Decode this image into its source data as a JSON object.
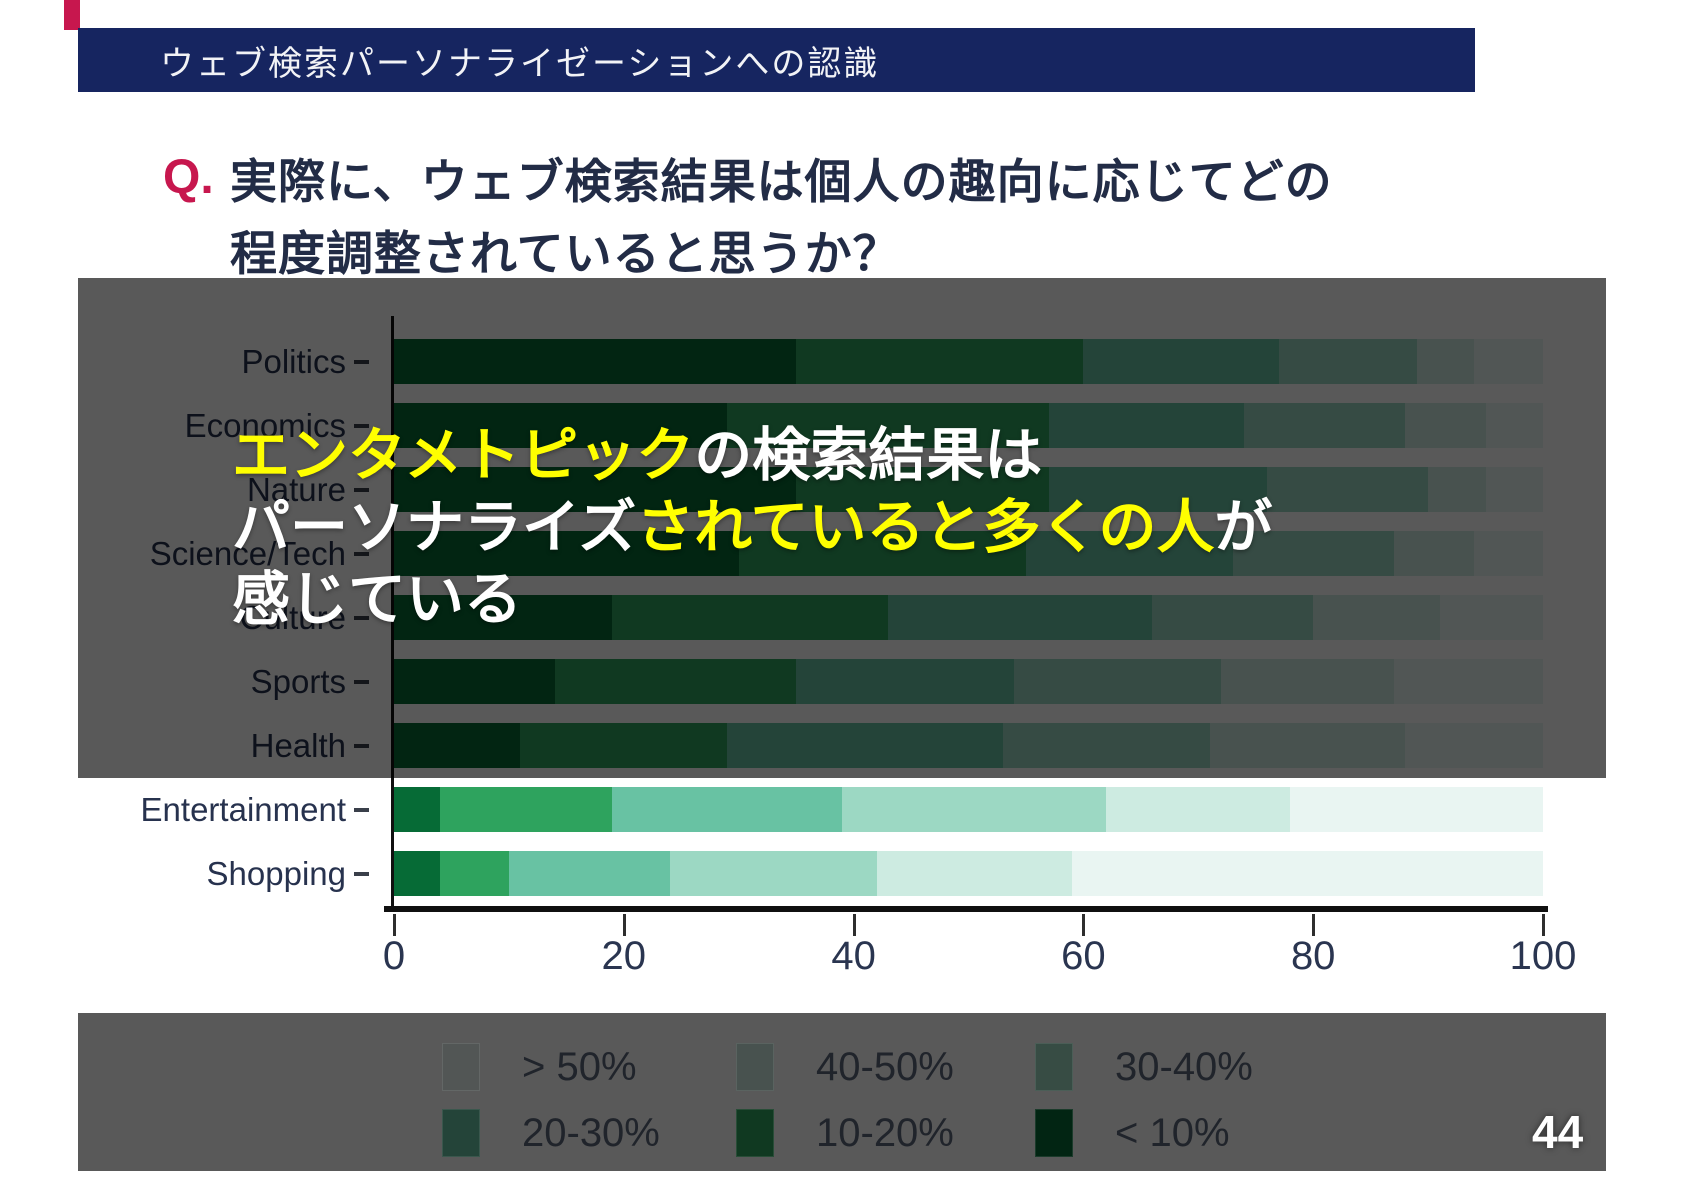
{
  "header": {
    "title": "ウェブ検索パーソナライゼーションへの認識",
    "bg_color": "#162560",
    "accent_color": "#c7174e"
  },
  "question": {
    "prefix": "Q.",
    "prefix_color": "#c7174e",
    "line1": "実際に、ウェブ検索結果は個人の趣向に応じてどの",
    "line2": "程度調整されていると思うか？",
    "text_color": "#222c46"
  },
  "callout": {
    "highlight_color": "#ffff00",
    "base_color": "#ffffff",
    "line1": [
      {
        "text": "エンタメトピック",
        "color": "#ffff00"
      },
      {
        "text": "の検索結果は",
        "color": "#ffffff"
      }
    ],
    "line2": [
      {
        "text": "パーソナライズ",
        "color": "#ffffff"
      },
      {
        "text": "されていると多くの人",
        "color": "#ffff00"
      },
      {
        "text": "が",
        "color": "#ffffff"
      }
    ],
    "line3": [
      {
        "text": "感じている",
        "color": "#ffffff"
      }
    ]
  },
  "chart_data": {
    "type": "bar",
    "stacked": true,
    "orientation": "horizontal",
    "title": "",
    "xlabel": "",
    "ylabel": "",
    "xlim": [
      0,
      100
    ],
    "x_ticks": [
      0,
      20,
      40,
      60,
      80,
      100
    ],
    "grid": false,
    "categories": [
      "Politics",
      "Economics",
      "Nature",
      "Science/Tech",
      "Culture",
      "Sports",
      "Health",
      "Entertainment",
      "Shopping"
    ],
    "series": [
      {
        "name": "< 10%",
        "color": "#066b36",
        "values": [
          35,
          29,
          35,
          30,
          19,
          14,
          11,
          4,
          4
        ]
      },
      {
        "name": "10-20%",
        "color": "#2ea35e",
        "values": [
          25,
          28,
          22,
          25,
          24,
          21,
          18,
          15,
          6
        ]
      },
      {
        "name": "20-30%",
        "color": "#68c2a3",
        "values": [
          17,
          17,
          19,
          18,
          23,
          19,
          24,
          20,
          14
        ]
      },
      {
        "name": "30-40%",
        "color": "#9cd8c3",
        "values": [
          12,
          14,
          14,
          14,
          14,
          18,
          18,
          23,
          18
        ]
      },
      {
        "name": "40-50%",
        "color": "#cdebe1",
        "values": [
          5,
          7,
          5,
          7,
          11,
          15,
          17,
          16,
          17
        ]
      },
      {
        "name": "> 50%",
        "color": "#e9f5f2",
        "values": [
          6,
          5,
          5,
          6,
          9,
          13,
          12,
          22,
          41
        ]
      }
    ],
    "dimmed_categories": [
      "Politics",
      "Economics",
      "Nature",
      "Science/Tech",
      "Culture",
      "Sports",
      "Health"
    ],
    "legend_rows": [
      [
        "> 50%",
        "40-50%",
        "30-40%"
      ],
      [
        "20-30%",
        "10-20%",
        "< 10%"
      ]
    ],
    "legend_position": "bottom"
  },
  "overlay": {
    "color": "rgba(0,0,0,0.65)"
  },
  "page_number": "44"
}
